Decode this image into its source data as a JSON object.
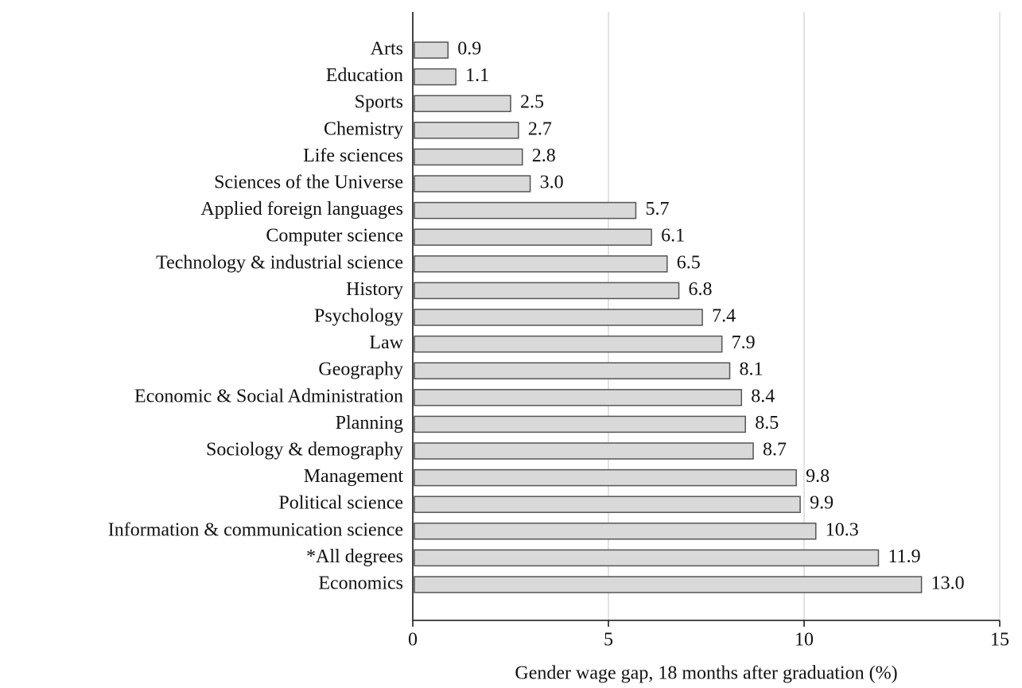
{
  "chart_data": {
    "type": "bar",
    "orientation": "horizontal",
    "x_label": "Gender wage gap, 18 months after graduation (%)",
    "categories": [
      "Arts",
      "Education",
      "Sports",
      "Chemistry",
      "Life sciences",
      "Sciences of the Universe",
      "Applied foreign languages",
      "Computer science",
      "Technology & industrial science",
      "History",
      "Psychology",
      "Law",
      "Geography",
      "Economic & Social Administration",
      "Planning",
      "Sociology & demography",
      "Management",
      "Political science",
      "Information & communication science",
      "*All degrees",
      "Economics"
    ],
    "values": [
      0.9,
      1.1,
      2.5,
      2.7,
      2.8,
      3.0,
      5.7,
      6.1,
      6.5,
      6.8,
      7.4,
      7.9,
      8.1,
      8.4,
      8.5,
      8.7,
      9.8,
      9.9,
      10.3,
      11.9,
      13.0
    ],
    "value_labels": [
      "0.9",
      "1.1",
      "2.5",
      "2.7",
      "2.8",
      "3.0",
      "5.7",
      "6.1",
      "6.5",
      "6.8",
      "7.4",
      "7.9",
      "8.1",
      "8.4",
      "8.5",
      "8.7",
      "9.8",
      "9.9",
      "10.3",
      "11.9",
      "13.0"
    ],
    "color": "#d9d9d9",
    "xlim": [
      0,
      15
    ],
    "xticks": [
      0,
      5,
      10,
      15
    ],
    "grid": true
  }
}
